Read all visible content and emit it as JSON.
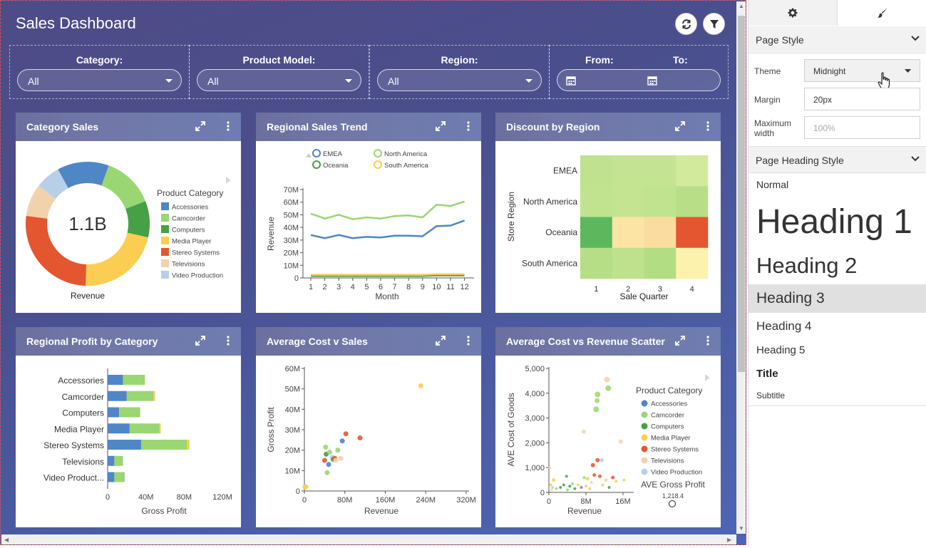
{
  "dashboard": {
    "title": "Sales Dashboard",
    "buttons": {
      "refresh": "refresh-icon",
      "filter": "filter-icon"
    },
    "filters": {
      "category": {
        "label": "Category:",
        "value": "All"
      },
      "product_model": {
        "label": "Product Model:",
        "value": "All"
      },
      "region": {
        "label": "Region:",
        "value": "All"
      },
      "date": {
        "from_label": "From:",
        "to_label": "To:"
      }
    }
  },
  "panels": [
    {
      "title": "Category Sales"
    },
    {
      "title": "Regional Sales Trend"
    },
    {
      "title": "Discount by Region"
    },
    {
      "title": "Regional Profit by Category"
    },
    {
      "title": "Average Cost v Sales"
    },
    {
      "title": "Average Cost vs Revenue Scatter"
    }
  ],
  "chart_data": [
    {
      "type": "pie",
      "center_label": "1.1B",
      "xlabel": "Revenue",
      "legend_title": "Product Category",
      "categories": [
        "Accessories",
        "Camcorder",
        "Computers",
        "Media Player",
        "Stereo Systems",
        "Televisions",
        "Video Production"
      ],
      "values": [
        13.5,
        13.5,
        9.5,
        22,
        26.5,
        8.5,
        6.5
      ],
      "colors": [
        "#4f86c6",
        "#9ad672",
        "#46a046",
        "#fbcd52",
        "#e4562f",
        "#f2d2ad",
        "#b8cfe8"
      ]
    },
    {
      "type": "line",
      "xlabel": "Month",
      "ylabel": "Revenue",
      "x": [
        1,
        2,
        3,
        4,
        5,
        6,
        7,
        8,
        9,
        10,
        11,
        12
      ],
      "yticks": [
        "0",
        "10M",
        "20M",
        "30M",
        "40M",
        "50M",
        "60M",
        "70M"
      ],
      "ylim": [
        0,
        70
      ],
      "series": [
        {
          "name": "EMEA",
          "color": "#4f86c6",
          "values": [
            34,
            31.5,
            34,
            31.5,
            32.5,
            32,
            33.5,
            33.5,
            33,
            41,
            41.5,
            45.5
          ]
        },
        {
          "name": "North America",
          "color": "#9ad672",
          "values": [
            51,
            47,
            50,
            46.5,
            48,
            47,
            49,
            49.5,
            48,
            58,
            57,
            60.5
          ]
        },
        {
          "name": "Oceania",
          "color": "#46a046",
          "values": [
            1.5,
            1.5,
            1.5,
            1.5,
            1.5,
            1.5,
            1.5,
            1.5,
            1.5,
            2,
            2,
            2
          ]
        },
        {
          "name": "South America",
          "color": "#fbcd52",
          "values": [
            2.5,
            2.5,
            2.5,
            2.5,
            2.5,
            2.5,
            2.5,
            2.5,
            2.5,
            3,
            3,
            3
          ]
        }
      ]
    },
    {
      "type": "heatmap",
      "xlabel": "Sale Quarter",
      "ylabel": "Store Region",
      "x": [
        "1",
        "2",
        "3",
        "4"
      ],
      "y": [
        "EMEA",
        "North America",
        "Oceania",
        "South America"
      ],
      "cell_colors": [
        [
          "#bfe291",
          "#c4e493",
          "#c4e493",
          "#d2ea9c"
        ],
        [
          "#c0e390",
          "#c4e492",
          "#c0e390",
          "#b8df88"
        ],
        [
          "#5cb85c",
          "#fce4a4",
          "#fbdca0",
          "#e4562f"
        ],
        [
          "#b6de86",
          "#bde18d",
          "#b3dd83",
          "#fdf1ae"
        ]
      ]
    },
    {
      "type": "bar",
      "orientation": "horizontal",
      "stacked": true,
      "xlabel": "Gross Profit",
      "xticks": [
        "0",
        "40M",
        "80M",
        "120M"
      ],
      "xlim": [
        0,
        120
      ],
      "categories": [
        "Accessories",
        "Camcorder",
        "Computers",
        "Media Player",
        "Stereo Systems",
        "Televisions",
        "Video Product..."
      ],
      "series": [
        {
          "color": "#4f86c6",
          "values": [
            16,
            20,
            12,
            23,
            35,
            7,
            7
          ]
        },
        {
          "color": "#9ad672",
          "values": [
            23,
            28,
            22,
            31,
            48,
            9,
            10
          ]
        },
        {
          "color": "#46a046",
          "values": [
            0,
            0,
            0,
            0,
            0,
            0,
            0.5
          ]
        },
        {
          "color": "#fbcd52",
          "values": [
            0,
            1.5,
            0,
            1.5,
            2.5,
            0,
            0
          ]
        }
      ]
    },
    {
      "type": "scatter",
      "xlabel": "Revenue",
      "ylabel": "Gross Profit",
      "xticks": [
        "0",
        "80M",
        "160M",
        "240M",
        "320M"
      ],
      "yticks": [
        "0",
        "10M",
        "20M",
        "30M",
        "40M",
        "50M",
        "60M"
      ],
      "xlim": [
        0,
        320
      ],
      "ylim": [
        0,
        60
      ],
      "points": [
        {
          "x": 1,
          "y": 2,
          "color": "#fbcd52"
        },
        {
          "x": 3,
          "y": 2,
          "color": "#fbcd52"
        },
        {
          "x": 40,
          "y": 15,
          "color": "#e4562f"
        },
        {
          "x": 42,
          "y": 21.5,
          "color": "#9ad672"
        },
        {
          "x": 43,
          "y": 18,
          "color": "#46a046"
        },
        {
          "x": 45,
          "y": 9,
          "color": "#9ad672"
        },
        {
          "x": 48,
          "y": 13,
          "color": "#4f86c6"
        },
        {
          "x": 50,
          "y": 19,
          "color": "#9ad672"
        },
        {
          "x": 55,
          "y": 16.5,
          "color": "#b8cfe8"
        },
        {
          "x": 57,
          "y": 15.5,
          "color": "#46a046"
        },
        {
          "x": 60,
          "y": 16,
          "color": "#e4562f"
        },
        {
          "x": 62,
          "y": 15,
          "color": "#f2d2ad"
        },
        {
          "x": 66,
          "y": 20,
          "color": "#9ad672"
        },
        {
          "x": 72,
          "y": 16,
          "color": "#f2d2ad"
        },
        {
          "x": 75,
          "y": 24.5,
          "color": "#4f86c6"
        },
        {
          "x": 82,
          "y": 28,
          "color": "#e4562f"
        },
        {
          "x": 110,
          "y": 26,
          "color": "#e4562f"
        },
        {
          "x": 230,
          "y": 51.5,
          "color": "#fbcd52"
        }
      ]
    },
    {
      "type": "scatter",
      "xlabel": "Revenue",
      "ylabel": "AVE Cost of Goods",
      "xticks": [
        "0",
        "8M",
        "16M"
      ],
      "yticks": [
        "0",
        "1,000",
        "2,000",
        "3,000",
        "4,000",
        "5,000"
      ],
      "xlim": [
        0,
        18
      ],
      "ylim": [
        0,
        5000
      ],
      "legend_title": "Product Category",
      "legend": [
        {
          "name": "Accessories",
          "color": "#4f86c6"
        },
        {
          "name": "Camcorder",
          "color": "#9ad672"
        },
        {
          "name": "Computers",
          "color": "#46a046"
        },
        {
          "name": "Media Player",
          "color": "#fbcd52"
        },
        {
          "name": "Stereo Systems",
          "color": "#e4562f"
        },
        {
          "name": "Televisions",
          "color": "#f2d2ad"
        },
        {
          "name": "Video Production",
          "color": "#b8cfe8"
        }
      ],
      "size_legend_title": "AVE Gross Profit",
      "size_legend_value": "1,218.4",
      "points": [
        {
          "x": 12.5,
          "y": 4550,
          "color": "#f2d2ad",
          "r": 4
        },
        {
          "x": 12.8,
          "y": 4200,
          "color": "#9ad672",
          "r": 4
        },
        {
          "x": 10.5,
          "y": 3950,
          "color": "#9ad672",
          "r": 4
        },
        {
          "x": 10.4,
          "y": 3700,
          "color": "#9ad672",
          "r": 3.5
        },
        {
          "x": 10.2,
          "y": 3350,
          "color": "#9ad672",
          "r": 4
        },
        {
          "x": 7.5,
          "y": 2450,
          "color": "#f2d2ad",
          "r": 3
        },
        {
          "x": 15.5,
          "y": 2050,
          "color": "#f2d2ad",
          "r": 3
        },
        {
          "x": 10.5,
          "y": 1300,
          "color": "#e4562f",
          "r": 3
        },
        {
          "x": 11.4,
          "y": 1300,
          "color": "#b8cfe8",
          "r": 3
        },
        {
          "x": 9.5,
          "y": 1100,
          "color": "#e4562f",
          "r": 3
        },
        {
          "x": 0.2,
          "y": 1000,
          "color": "#f2d2ad",
          "r": 2
        },
        {
          "x": 1.0,
          "y": 500,
          "color": "#fbcd52",
          "r": 2.5
        },
        {
          "x": 3.8,
          "y": 650,
          "color": "#46a046",
          "r": 2
        },
        {
          "x": 7.6,
          "y": 600,
          "color": "#9ad672",
          "r": 2
        },
        {
          "x": 8.3,
          "y": 550,
          "color": "#fbcd52",
          "r": 2.5
        },
        {
          "x": 9.8,
          "y": 700,
          "color": "#e4562f",
          "r": 2.5
        },
        {
          "x": 11.0,
          "y": 650,
          "color": "#e4562f",
          "r": 2.5
        },
        {
          "x": 12.3,
          "y": 500,
          "color": "#f2d2ad",
          "r": 2.5
        },
        {
          "x": 13.8,
          "y": 600,
          "color": "#e4562f",
          "r": 2.5
        },
        {
          "x": 14.5,
          "y": 450,
          "color": "#fbcd52",
          "r": 2
        },
        {
          "x": 16.2,
          "y": 500,
          "color": "#fbcd52",
          "r": 2
        },
        {
          "x": 2.5,
          "y": 200,
          "color": "#46a046",
          "r": 2
        },
        {
          "x": 3.2,
          "y": 300,
          "color": "#46a046",
          "r": 2
        },
        {
          "x": 4.0,
          "y": 100,
          "color": "#9ad672",
          "r": 2
        },
        {
          "x": 4.5,
          "y": 250,
          "color": "#46a046",
          "r": 2
        },
        {
          "x": 5.1,
          "y": 350,
          "color": "#9ad672",
          "r": 2
        },
        {
          "x": 5.6,
          "y": 150,
          "color": "#46a046",
          "r": 2
        },
        {
          "x": 6.3,
          "y": 300,
          "color": "#fbcd52",
          "r": 2
        },
        {
          "x": 7.0,
          "y": 200,
          "color": "#4f86c6",
          "r": 2
        },
        {
          "x": 8.0,
          "y": 250,
          "color": "#fbcd52",
          "r": 2
        },
        {
          "x": 8.8,
          "y": 150,
          "color": "#fbcd52",
          "r": 2
        },
        {
          "x": 9.2,
          "y": 400,
          "color": "#f2d2ad",
          "r": 2
        },
        {
          "x": 11.6,
          "y": 300,
          "color": "#fbcd52",
          "r": 2
        },
        {
          "x": 13.0,
          "y": 200,
          "color": "#46a046",
          "r": 2
        },
        {
          "x": 0.4,
          "y": 300,
          "color": "#fbcd52",
          "r": 2
        },
        {
          "x": 0.6,
          "y": 100,
          "color": "#f2d2ad",
          "r": 2
        },
        {
          "x": 0.8,
          "y": 200,
          "color": "#b8cfe8",
          "r": 2
        },
        {
          "x": 1.6,
          "y": 150,
          "color": "#9ad672",
          "r": 2
        }
      ]
    }
  ],
  "sidebar": {
    "tabs": {
      "settings_icon": "gear-icon",
      "style_icon": "paintbrush-icon"
    },
    "page_style": {
      "title": "Page Style",
      "theme_label": "Theme",
      "theme_value": "Midnight",
      "margin_label": "Margin",
      "margin_value": "20px",
      "max_width_label_1": "Maximum",
      "max_width_label_2": "width",
      "max_width_placeholder": "100%"
    },
    "heading_style": {
      "title": "Page Heading Style",
      "options": [
        "Normal",
        "Heading 1",
        "Heading 2",
        "Heading 3",
        "Heading 4",
        "Heading 5",
        "Title",
        "Subtitle"
      ]
    }
  },
  "colors": {
    "accent": "#4f86c6",
    "dashboard_bg": "#4b5aa0",
    "selected_heading_bg": "#e0e0e0"
  }
}
